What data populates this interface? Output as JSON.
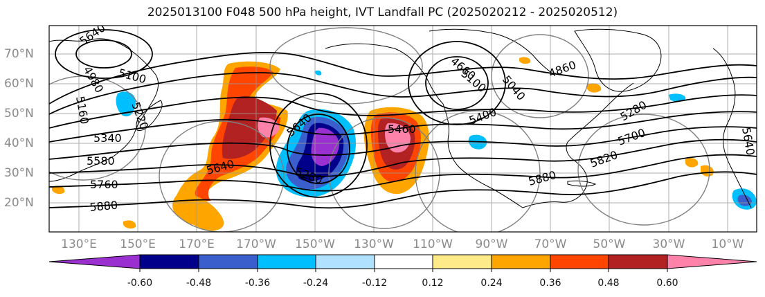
{
  "title": "2025013100 F048 500 hPa height, IVT Landfall PC (2025020212 - 2025020512)",
  "lon_labels": [
    "130°E",
    "150°E",
    "170°E",
    "170°W",
    "150°W",
    "130°W",
    "110°W",
    "90°W",
    "70°W",
    "50°W",
    "30°W",
    "10°W"
  ],
  "lat_labels": [
    "70°N",
    "60°N",
    "50°N",
    "40°N",
    "30°N",
    "20°N"
  ],
  "contour_labels": [
    "5640",
    "4980",
    "5100",
    "5160",
    "5220",
    "5340",
    "5580",
    "5760",
    "5880",
    "5640",
    "5640",
    "5280",
    "5460",
    "4660",
    "5100",
    "5040",
    "4860",
    "5400",
    "5280",
    "5700",
    "5820",
    "5880",
    "5640"
  ],
  "colorbar": {
    "colors": [
      "#9b30d0",
      "#00008b",
      "#3a5fcd",
      "#00bfff",
      "#b0e2ff",
      "#ffffff",
      "#ffea8a",
      "#ffa500",
      "#ff4500",
      "#b22222",
      "#ff82ab"
    ],
    "tick_labels": [
      "-0.60",
      "-0.48",
      "-0.36",
      "-0.24",
      "-0.12",
      "0.12",
      "0.24",
      "0.36",
      "0.48",
      "0.60"
    ]
  },
  "chart_data": {
    "type": "map",
    "title": "2025013100 F048 500 hPa height, IVT Landfall PC (2025020212 - 2025020512)",
    "contour_field": "500 hPa height",
    "shaded_field": "IVT Landfall PC",
    "lon_range": [
      "120°E",
      "0°"
    ],
    "lat_range": [
      "10°N",
      "80°N"
    ],
    "grid": true,
    "colorbar_levels": [
      -0.6,
      -0.48,
      -0.36,
      -0.24,
      -0.12,
      0.12,
      0.24,
      0.36,
      0.48,
      0.6
    ],
    "colorbar_extend": "both"
  }
}
